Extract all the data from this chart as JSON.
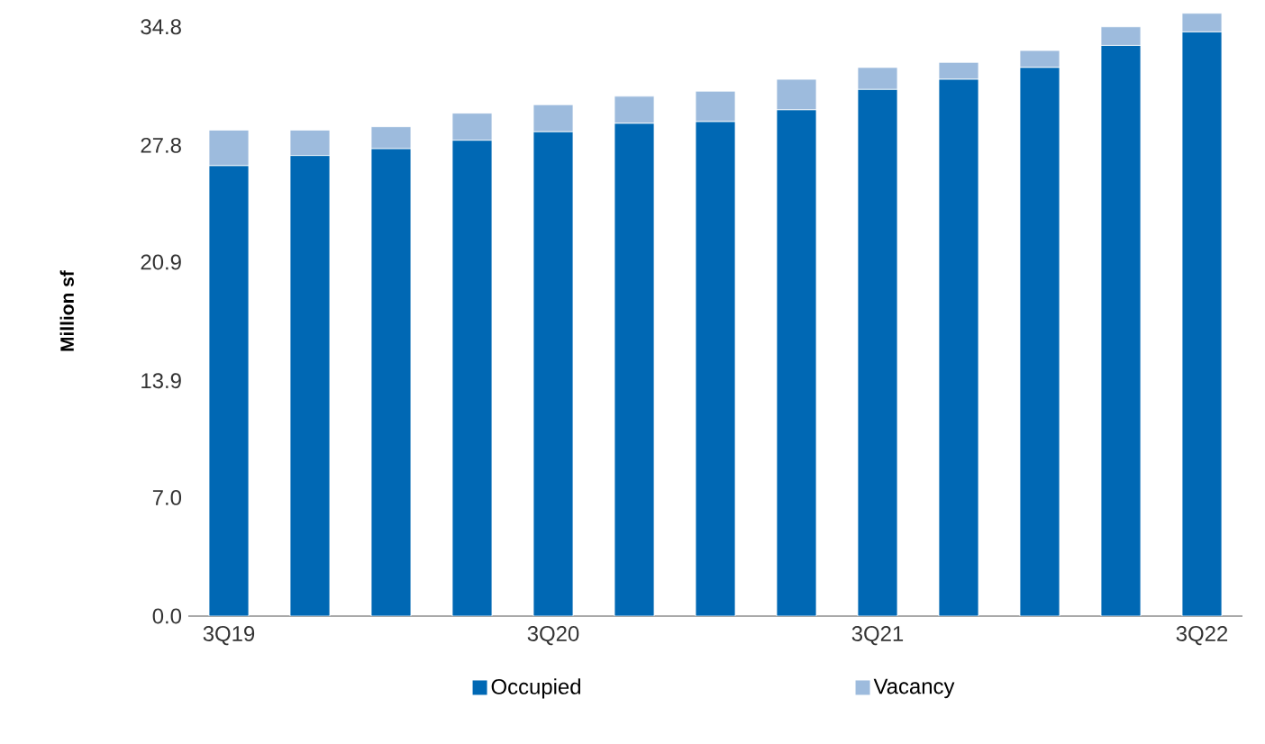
{
  "chart_data": {
    "type": "bar",
    "stacked": true,
    "ylabel": "Million sf",
    "categories": [
      "3Q19",
      null,
      null,
      null,
      "3Q20",
      null,
      null,
      null,
      "3Q21",
      null,
      null,
      null,
      "3Q22"
    ],
    "series": [
      {
        "name": "Occupied",
        "color": "#0068b4",
        "values": [
          26.6,
          27.2,
          27.6,
          28.1,
          28.6,
          29.1,
          29.2,
          29.9,
          31.1,
          31.7,
          32.4,
          33.7,
          34.5
        ]
      },
      {
        "name": "Vacancy",
        "color": "#9dbbdd",
        "values": [
          2.1,
          1.5,
          1.3,
          1.6,
          1.6,
          1.6,
          1.8,
          1.8,
          1.3,
          1.0,
          1.0,
          1.1,
          1.1
        ]
      }
    ],
    "ylim": [
      0,
      36
    ],
    "yticks": [
      {
        "value": 0,
        "label": "0.0"
      },
      {
        "value": 7,
        "label": "7.0"
      },
      {
        "value": 13.9,
        "label": "13.9"
      },
      {
        "value": 20.9,
        "label": "20.9"
      },
      {
        "value": 27.8,
        "label": "27.8"
      },
      {
        "value": 34.8,
        "label": "34.8"
      }
    ],
    "grid": false,
    "legend": "bottom"
  }
}
